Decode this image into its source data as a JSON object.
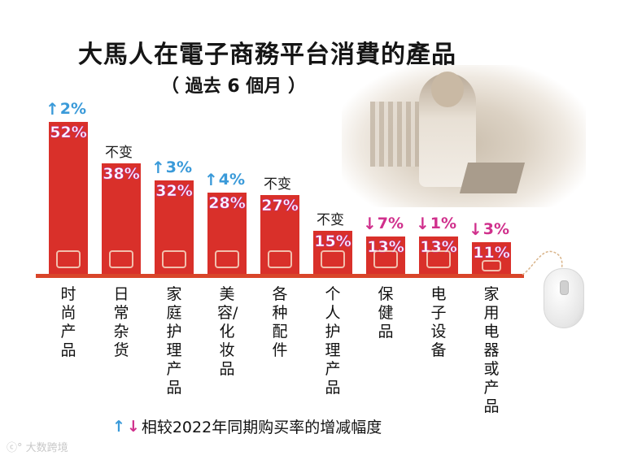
{
  "chart_data": {
    "type": "bar",
    "title": "大馬人在電子商務平台消費的產品",
    "subtitle": "（ 過去 6 個月 ）",
    "xlabel": "",
    "ylabel": "",
    "ylim": [
      0,
      60
    ],
    "grid": false,
    "categories": [
      "时尚产品",
      "日常杂货",
      "家庭护理产品",
      "美容/化妆品",
      "各种配件",
      "个人护理产品",
      "保健品",
      "电子设备",
      "家用电器或产品"
    ],
    "values": [
      52,
      38,
      32,
      28,
      27,
      15,
      13,
      13,
      11
    ],
    "value_labels": [
      "52%",
      "38%",
      "32%",
      "28%",
      "27%",
      "15%",
      "13%",
      "13%",
      "11%"
    ],
    "change_vs_2022": [
      {
        "direction": "up",
        "label": "2%"
      },
      {
        "direction": "same",
        "label": "不变"
      },
      {
        "direction": "up",
        "label": "3%"
      },
      {
        "direction": "up",
        "label": "4%"
      },
      {
        "direction": "same",
        "label": "不变"
      },
      {
        "direction": "same",
        "label": "不变"
      },
      {
        "direction": "down",
        "label": "7%"
      },
      {
        "direction": "down",
        "label": "1%"
      },
      {
        "direction": "down",
        "label": "3%"
      }
    ],
    "legend": "相较2022年同期购买率的增减幅度",
    "colors": {
      "bar": "#d9302a",
      "up": "#3a9ad9",
      "down": "#d0308c",
      "value_outline": "#c03aa0"
    }
  },
  "header": {
    "title": "大馬人在電子商務平台消費的產品",
    "subtitle": "（ 過去 6 個月 ）"
  },
  "legend": {
    "up_icon": "↑",
    "down_icon": "↓",
    "text": "相较2022年同期购买率的增减幅度"
  },
  "watermark": {
    "text": "大数跨境"
  },
  "bars": [
    {
      "label": "时尚产品",
      "value": "52%",
      "change": "2%",
      "dir": "up",
      "icon": "fashion-icon"
    },
    {
      "label": "日常杂货",
      "value": "38%",
      "change": "不变",
      "dir": "same",
      "icon": "grocery-basket-icon"
    },
    {
      "label": "家庭护理产品",
      "value": "32%",
      "change": "3%",
      "dir": "up",
      "icon": "cleaning-icon"
    },
    {
      "label": "美容/化妆品",
      "value": "28%",
      "change": "4%",
      "dir": "up",
      "icon": "cosmetics-icon"
    },
    {
      "label": "各种配件",
      "value": "27%",
      "change": "不变",
      "dir": "same",
      "icon": "accessories-icon"
    },
    {
      "label": "个人护理产品",
      "value": "15%",
      "change": "不变",
      "dir": "same",
      "icon": "personal-care-icon"
    },
    {
      "label": "保健品",
      "value": "13%",
      "change": "7%",
      "dir": "down",
      "icon": "health-supplement-icon"
    },
    {
      "label": "电子设备",
      "value": "13%",
      "change": "1%",
      "dir": "down",
      "icon": "electronics-icon"
    },
    {
      "label": "家用电器或产品",
      "value": "11%",
      "change": "3%",
      "dir": "down",
      "icon": "home-appliance-icon"
    }
  ],
  "arrows": {
    "up": "🡅",
    "down": "🡇"
  }
}
